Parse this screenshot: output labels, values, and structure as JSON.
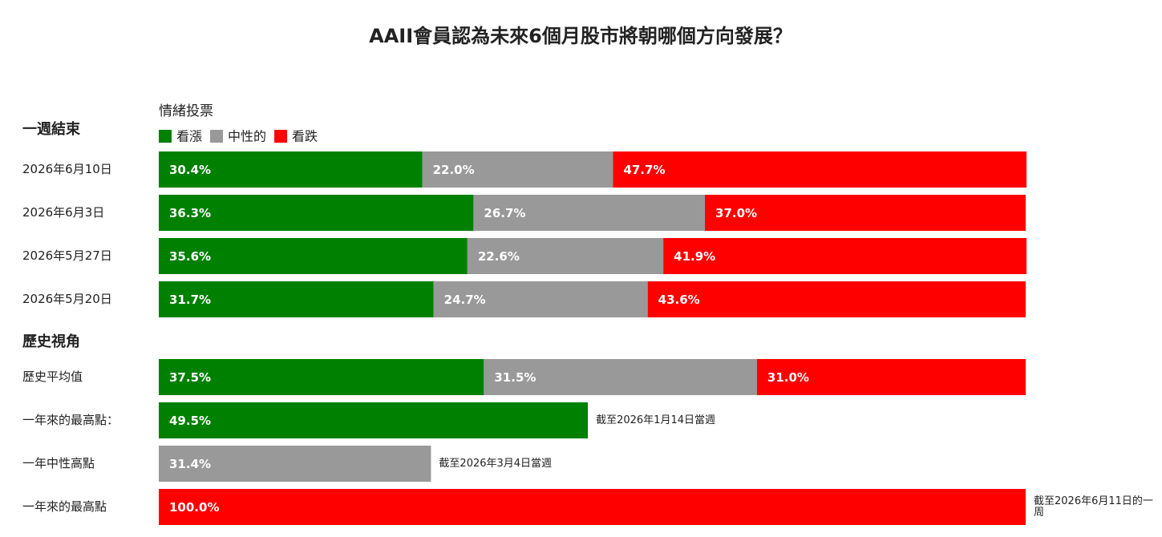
{
  "chart_data": {
    "type": "stacked-bar-h",
    "title": "AAII會員認為未來6個月股市將朝哪個方向發展？",
    "legend_title": "情緒投票",
    "series": [
      {
        "name": "看漲",
        "color": "#008000"
      },
      {
        "name": "中性的",
        "color": "#999999"
      },
      {
        "name": "看跌",
        "color": "#ff0000"
      }
    ],
    "sections": [
      {
        "label": "一週結束",
        "rows": [
          {
            "label": "2026年6月10日",
            "values": [
              30.4,
              22.0,
              47.7
            ],
            "value_labels": [
              "30.4%",
              "22.0%",
              "47.7%"
            ]
          },
          {
            "label": "2026年6月3日",
            "values": [
              36.3,
              26.7,
              37.0
            ],
            "value_labels": [
              "36.3%",
              "26.7%",
              "37.0%"
            ]
          },
          {
            "label": "2026年5月27日",
            "values": [
              35.6,
              22.6,
              41.9
            ],
            "value_labels": [
              "35.6%",
              "22.6%",
              "41.9%"
            ]
          },
          {
            "label": "2026年5月20日",
            "values": [
              31.7,
              24.7,
              43.6
            ],
            "value_labels": [
              "31.7%",
              "24.7%",
              "43.6%"
            ]
          }
        ]
      },
      {
        "label": "歷史視角",
        "rows": [
          {
            "label": "歷史平均值",
            "values": [
              37.5,
              31.5,
              31.0
            ],
            "value_labels": [
              "37.5%",
              "31.5%",
              "31.0%"
            ]
          },
          {
            "label": "一年來的最高點：",
            "values": [
              49.5,
              null,
              null
            ],
            "value_labels": [
              "49.5%",
              null,
              null
            ],
            "note": "截至2026年1月14日當週"
          },
          {
            "label": "一年中性高點",
            "values": [
              null,
              31.4,
              null
            ],
            "value_labels": [
              null,
              "31.4%",
              null
            ],
            "note": "截至2026年3月4日當週"
          },
          {
            "label": "一年來的最高點",
            "values": [
              null,
              null,
              100.0
            ],
            "value_labels": [
              null,
              null,
              "100.0%"
            ],
            "note": "截至2026年6月11日的一周"
          }
        ]
      }
    ]
  }
}
